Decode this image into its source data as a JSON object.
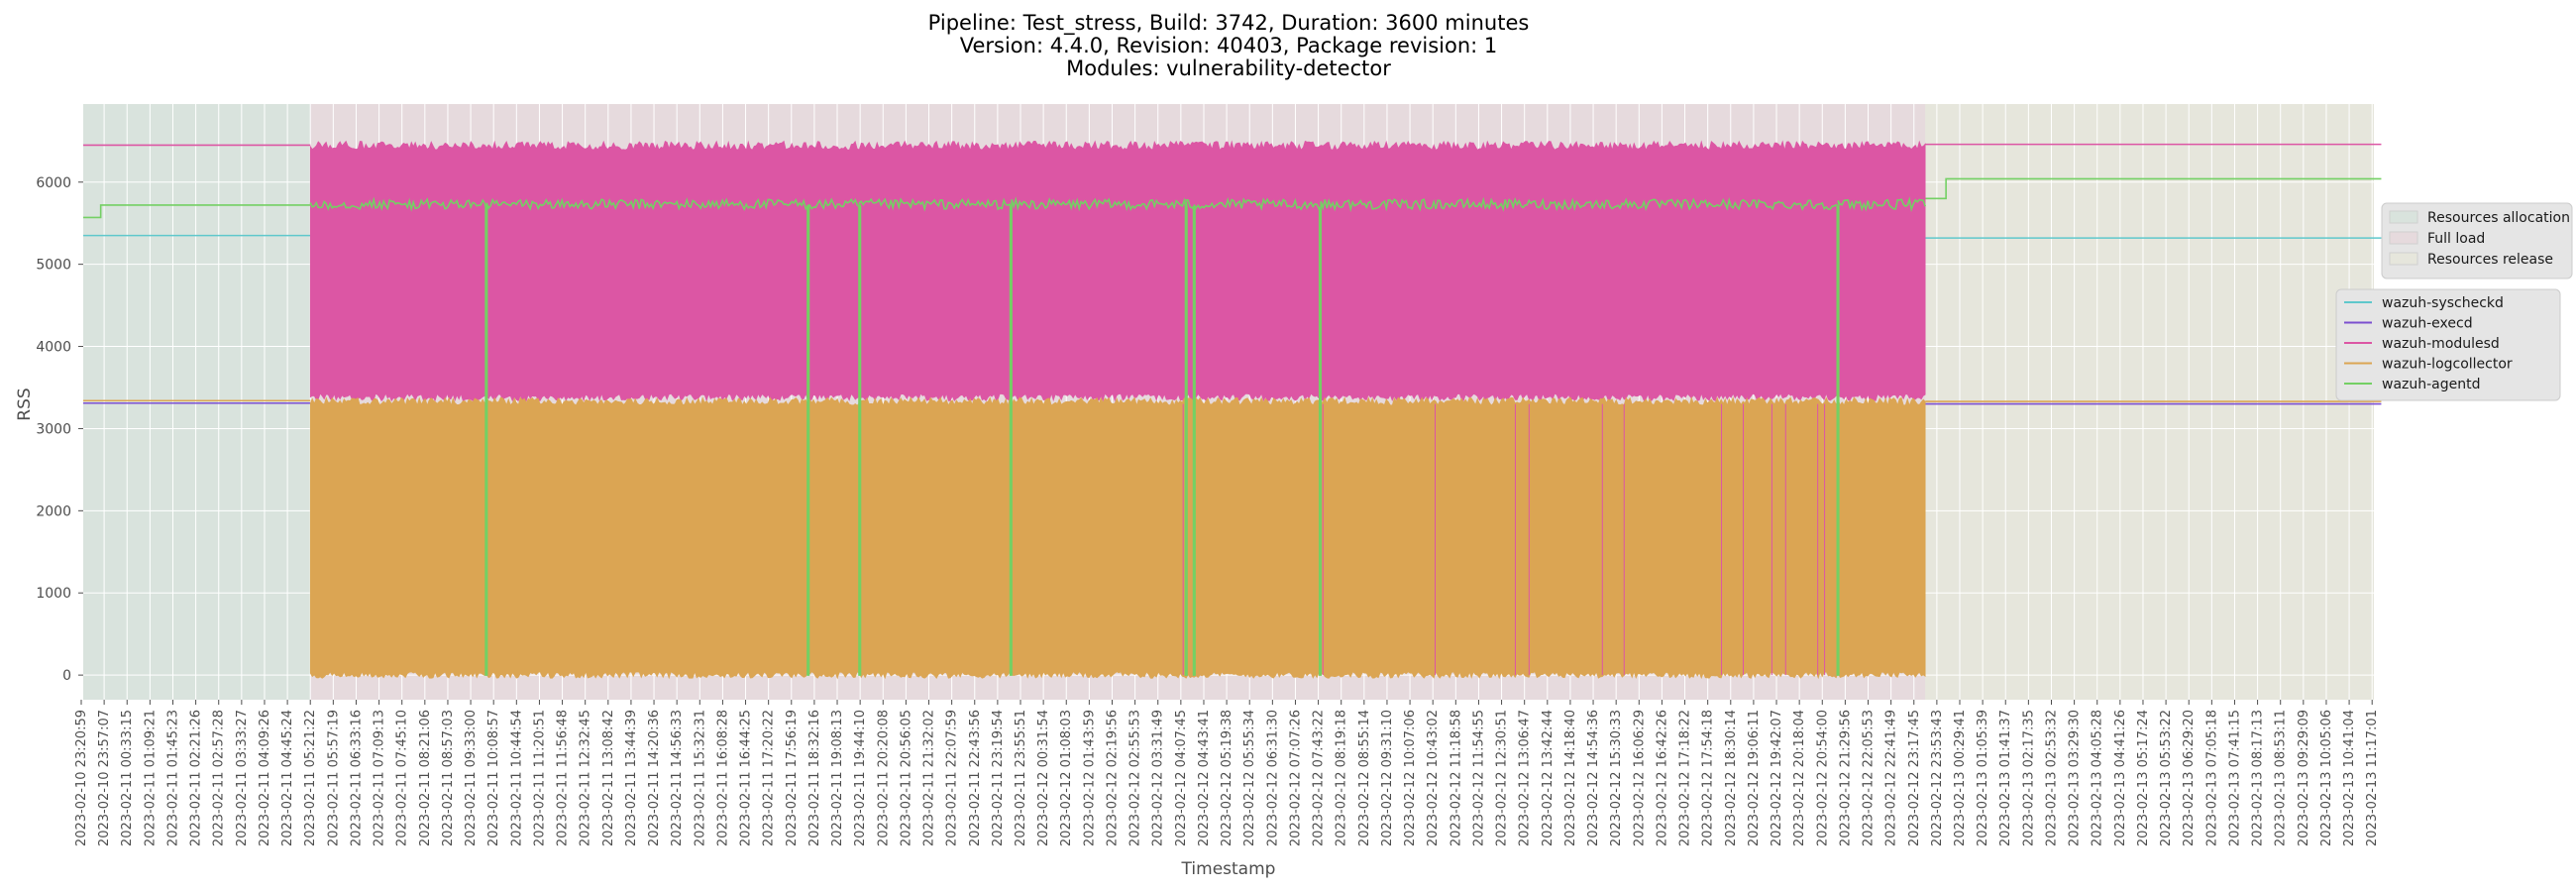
{
  "chart_data": {
    "type": "line",
    "title": [
      "Pipeline: Test_stress, Build: 3742, Duration: 3600 minutes",
      "Version: 4.4.0, Revision: 40403, Package revision: 1",
      "Modules: vulnerability-detector"
    ],
    "xlabel": "Timestamp",
    "ylabel": "RSS",
    "ylim": [
      -300,
      6950
    ],
    "yticks": [
      0,
      1000,
      2000,
      3000,
      4000,
      5000,
      6000
    ],
    "grid": true,
    "background": "#e5e5e5",
    "xticks": [
      "2023-02-10 23:20:59",
      "2023-02-10 23:57:07",
      "2023-02-11 00:33:15",
      "2023-02-11 01:09:21",
      "2023-02-11 01:45:23",
      "2023-02-11 02:21:26",
      "2023-02-11 02:57:28",
      "2023-02-11 03:33:27",
      "2023-02-11 04:09:26",
      "2023-02-11 04:45:24",
      "2023-02-11 05:21:22",
      "2023-02-11 05:57:19",
      "2023-02-11 06:33:16",
      "2023-02-11 07:09:13",
      "2023-02-11 07:45:10",
      "2023-02-11 08:21:06",
      "2023-02-11 08:57:03",
      "2023-02-11 09:33:00",
      "2023-02-11 10:08:57",
      "2023-02-11 10:44:54",
      "2023-02-11 11:20:51",
      "2023-02-11 11:56:48",
      "2023-02-11 12:32:45",
      "2023-02-11 13:08:42",
      "2023-02-11 13:44:39",
      "2023-02-11 14:20:36",
      "2023-02-11 14:56:33",
      "2023-02-11 15:32:31",
      "2023-02-11 16:08:28",
      "2023-02-11 16:44:25",
      "2023-02-11 17:20:22",
      "2023-02-11 17:56:19",
      "2023-02-11 18:32:16",
      "2023-02-11 19:08:13",
      "2023-02-11 19:44:10",
      "2023-02-11 20:20:08",
      "2023-02-11 20:56:05",
      "2023-02-11 21:32:02",
      "2023-02-11 22:07:59",
      "2023-02-11 22:43:56",
      "2023-02-11 23:19:54",
      "2023-02-11 23:55:51",
      "2023-02-12 00:31:54",
      "2023-02-12 01:08:03",
      "2023-02-12 01:43:59",
      "2023-02-12 02:19:56",
      "2023-02-12 02:55:53",
      "2023-02-12 03:31:49",
      "2023-02-12 04:07:45",
      "2023-02-12 04:43:41",
      "2023-02-12 05:19:38",
      "2023-02-12 05:55:34",
      "2023-02-12 06:31:30",
      "2023-02-12 07:07:26",
      "2023-02-12 07:43:22",
      "2023-02-12 08:19:18",
      "2023-02-12 08:55:14",
      "2023-02-12 09:31:10",
      "2023-02-12 10:07:06",
      "2023-02-12 10:43:02",
      "2023-02-12 11:18:58",
      "2023-02-12 11:54:55",
      "2023-02-12 12:30:51",
      "2023-02-12 13:06:47",
      "2023-02-12 13:42:44",
      "2023-02-12 14:18:40",
      "2023-02-12 14:54:36",
      "2023-02-12 15:30:33",
      "2023-02-12 16:06:29",
      "2023-02-12 16:42:26",
      "2023-02-12 17:18:22",
      "2023-02-12 17:54:18",
      "2023-02-12 18:30:14",
      "2023-02-12 19:06:11",
      "2023-02-12 19:42:07",
      "2023-02-12 20:18:04",
      "2023-02-12 20:54:00",
      "2023-02-12 21:29:56",
      "2023-02-12 22:05:53",
      "2023-02-12 22:41:49",
      "2023-02-12 23:17:45",
      "2023-02-12 23:53:43",
      "2023-02-13 00:29:41",
      "2023-02-13 01:05:39",
      "2023-02-13 01:41:37",
      "2023-02-13 02:17:35",
      "2023-02-13 02:53:32",
      "2023-02-13 03:29:30",
      "2023-02-13 04:05:28",
      "2023-02-13 04:41:26",
      "2023-02-13 05:17:24",
      "2023-02-13 05:53:22",
      "2023-02-13 06:29:20",
      "2023-02-13 07:05:18",
      "2023-02-13 07:41:15",
      "2023-02-13 08:17:13",
      "2023-02-13 08:53:11",
      "2023-02-13 09:29:09",
      "2023-02-13 10:05:06",
      "2023-02-13 10:41:04",
      "2023-02-13 11:17:01"
    ],
    "phases": [
      {
        "name": "Resources allocation",
        "start_tick": 0,
        "end_tick": 10,
        "color": "#d9e3dd"
      },
      {
        "name": "Full load",
        "start_tick": 10,
        "end_tick": 80.5,
        "color": "#e6dadd"
      },
      {
        "name": "Resources release",
        "start_tick": 80.5,
        "end_tick": 100.4,
        "color": "#e6e6dc"
      }
    ],
    "series": [
      {
        "name": "wazuh-syscheckd",
        "color": "#5fc8cc",
        "points": [
          [
            -0.2,
            5350
          ],
          [
            10,
            5350
          ],
          [
            80.5,
            5320
          ],
          [
            100.4,
            5320
          ]
        ],
        "full_load": null
      },
      {
        "name": "wazuh-execd",
        "color": "#7b4fd0",
        "points": [
          [
            -0.2,
            3310
          ],
          [
            10,
            3310
          ],
          [
            80.5,
            3300
          ],
          [
            100.4,
            3300
          ]
        ],
        "full_load": null
      },
      {
        "name": "wazuh-modulesd",
        "color": "#dc56a4",
        "points": [
          [
            -0.2,
            6450
          ],
          [
            10,
            6450
          ],
          [
            80.5,
            6460
          ],
          [
            100.4,
            6460
          ]
        ],
        "full_load": {
          "low": 3380,
          "high": 6500,
          "noise": 90
        }
      },
      {
        "name": "wazuh-logcollector",
        "color": "#dba553",
        "points": [
          [
            -0.2,
            3340
          ],
          [
            10,
            3340
          ],
          [
            80.5,
            3330
          ],
          [
            100.4,
            3330
          ]
        ],
        "full_load": {
          "low": 0,
          "high": 3380,
          "noise": 80
        }
      },
      {
        "name": "wazuh-agentd",
        "color": "#74d064",
        "points": [
          [
            -0.2,
            5570
          ],
          [
            0.85,
            5570
          ],
          [
            0.85,
            5720
          ],
          [
            10,
            5720
          ],
          [
            80.5,
            5800
          ],
          [
            81.4,
            5800
          ],
          [
            81.4,
            6040
          ],
          [
            100.4,
            6040
          ]
        ],
        "full_load": {
          "low": 5650,
          "high": 5820,
          "noise": 0,
          "drops": [
            17.65,
            31.7,
            33.95,
            40.55,
            48.2,
            48.55,
            54.05,
            76.65
          ]
        }
      }
    ],
    "legend": {
      "phases_placement": "right",
      "series_placement": "right"
    }
  }
}
